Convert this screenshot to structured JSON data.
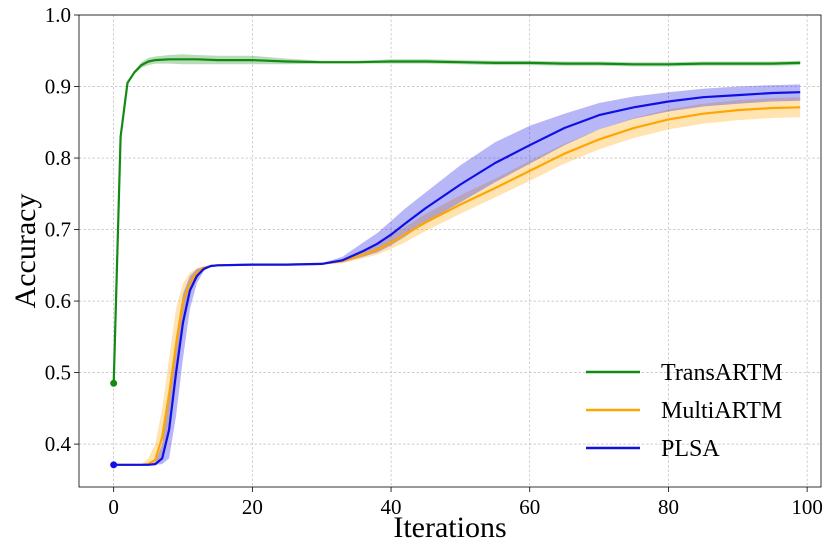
{
  "chart_data": {
    "type": "line",
    "xlabel": "Iterations",
    "ylabel": "Accuracy",
    "xlim": [
      -5,
      102
    ],
    "ylim": [
      0.34,
      1.0
    ],
    "xticks": [
      0,
      20,
      40,
      60,
      80,
      100
    ],
    "xtick_labels": [
      "0",
      "20",
      "40",
      "60",
      "80",
      "100"
    ],
    "yticks": [
      0.4,
      0.5,
      0.6,
      0.7,
      0.8,
      0.9,
      1.0
    ],
    "ytick_labels": [
      "0.4",
      "0.5",
      "0.6",
      "0.7",
      "0.8",
      "0.9",
      "1.0"
    ],
    "grid": true,
    "legend_position": "lower-right",
    "series": [
      {
        "name": "TransARTM",
        "color": "#138a13",
        "marker_at_start": true,
        "x": [
          0,
          1,
          2,
          3,
          4,
          5,
          6,
          8,
          10,
          12,
          15,
          20,
          25,
          30,
          35,
          40,
          45,
          50,
          55,
          60,
          65,
          70,
          75,
          80,
          85,
          90,
          95,
          99
        ],
        "y": [
          0.485,
          0.83,
          0.905,
          0.92,
          0.93,
          0.935,
          0.937,
          0.938,
          0.938,
          0.938,
          0.937,
          0.937,
          0.935,
          0.934,
          0.934,
          0.935,
          0.935,
          0.934,
          0.933,
          0.933,
          0.932,
          0.932,
          0.931,
          0.931,
          0.932,
          0.932,
          0.932,
          0.933
        ],
        "lower": [
          0.485,
          0.83,
          0.905,
          0.918,
          0.926,
          0.93,
          0.932,
          0.932,
          0.931,
          0.931,
          0.931,
          0.931,
          0.931,
          0.932,
          0.932,
          0.932,
          0.932,
          0.931,
          0.93,
          0.93,
          0.929,
          0.929,
          0.928,
          0.928,
          0.929,
          0.929,
          0.929,
          0.93
        ],
        "upper": [
          0.485,
          0.83,
          0.905,
          0.922,
          0.934,
          0.94,
          0.942,
          0.944,
          0.945,
          0.944,
          0.943,
          0.943,
          0.939,
          0.936,
          0.936,
          0.938,
          0.938,
          0.937,
          0.936,
          0.936,
          0.935,
          0.935,
          0.934,
          0.934,
          0.935,
          0.935,
          0.935,
          0.936
        ]
      },
      {
        "name": "MultiARTM",
        "color": "#ffa500",
        "marker_at_start": false,
        "x": [
          0,
          4,
          5,
          6,
          7,
          8,
          9,
          10,
          11,
          12,
          13,
          14,
          15,
          20,
          25,
          30,
          33,
          36,
          38,
          40,
          42,
          45,
          50,
          55,
          60,
          65,
          70,
          75,
          80,
          85,
          90,
          95,
          99
        ],
        "y": [
          0.371,
          0.371,
          0.372,
          0.378,
          0.41,
          0.47,
          0.54,
          0.6,
          0.625,
          0.64,
          0.646,
          0.649,
          0.65,
          0.651,
          0.651,
          0.652,
          0.656,
          0.665,
          0.672,
          0.682,
          0.693,
          0.71,
          0.735,
          0.758,
          0.782,
          0.806,
          0.826,
          0.842,
          0.854,
          0.862,
          0.867,
          0.87,
          0.871
        ],
        "lower": [
          0.371,
          0.371,
          0.371,
          0.372,
          0.38,
          0.42,
          0.5,
          0.57,
          0.61,
          0.632,
          0.644,
          0.648,
          0.649,
          0.65,
          0.65,
          0.651,
          0.653,
          0.66,
          0.665,
          0.673,
          0.682,
          0.698,
          0.722,
          0.745,
          0.768,
          0.792,
          0.812,
          0.828,
          0.84,
          0.848,
          0.853,
          0.856,
          0.857
        ],
        "upper": [
          0.371,
          0.372,
          0.38,
          0.4,
          0.45,
          0.52,
          0.59,
          0.625,
          0.64,
          0.646,
          0.649,
          0.65,
          0.651,
          0.652,
          0.652,
          0.653,
          0.659,
          0.67,
          0.679,
          0.691,
          0.704,
          0.722,
          0.748,
          0.771,
          0.796,
          0.82,
          0.84,
          0.856,
          0.868,
          0.876,
          0.881,
          0.884,
          0.885
        ]
      },
      {
        "name": "PLSA",
        "color": "#1010e6",
        "marker_at_start": true,
        "x": [
          0,
          4,
          5,
          6,
          7,
          8,
          9,
          10,
          11,
          12,
          13,
          14,
          15,
          20,
          25,
          30,
          33,
          36,
          38,
          40,
          42,
          45,
          50,
          55,
          60,
          65,
          70,
          75,
          80,
          85,
          90,
          95,
          99
        ],
        "y": [
          0.371,
          0.371,
          0.371,
          0.372,
          0.38,
          0.42,
          0.5,
          0.57,
          0.615,
          0.635,
          0.645,
          0.649,
          0.65,
          0.651,
          0.651,
          0.652,
          0.657,
          0.67,
          0.68,
          0.693,
          0.708,
          0.73,
          0.763,
          0.793,
          0.818,
          0.842,
          0.86,
          0.871,
          0.879,
          0.885,
          0.888,
          0.891,
          0.892
        ],
        "lower": [
          0.371,
          0.371,
          0.371,
          0.371,
          0.372,
          0.38,
          0.44,
          0.52,
          0.59,
          0.625,
          0.642,
          0.648,
          0.649,
          0.65,
          0.65,
          0.651,
          0.654,
          0.662,
          0.668,
          0.678,
          0.69,
          0.71,
          0.738,
          0.766,
          0.792,
          0.818,
          0.84,
          0.855,
          0.865,
          0.872,
          0.876,
          0.879,
          0.88
        ],
        "upper": [
          0.371,
          0.371,
          0.371,
          0.375,
          0.4,
          0.47,
          0.55,
          0.61,
          0.635,
          0.645,
          0.648,
          0.65,
          0.651,
          0.652,
          0.652,
          0.653,
          0.662,
          0.682,
          0.695,
          0.712,
          0.729,
          0.752,
          0.79,
          0.822,
          0.845,
          0.862,
          0.877,
          0.886,
          0.892,
          0.897,
          0.9,
          0.902,
          0.903
        ]
      }
    ]
  }
}
